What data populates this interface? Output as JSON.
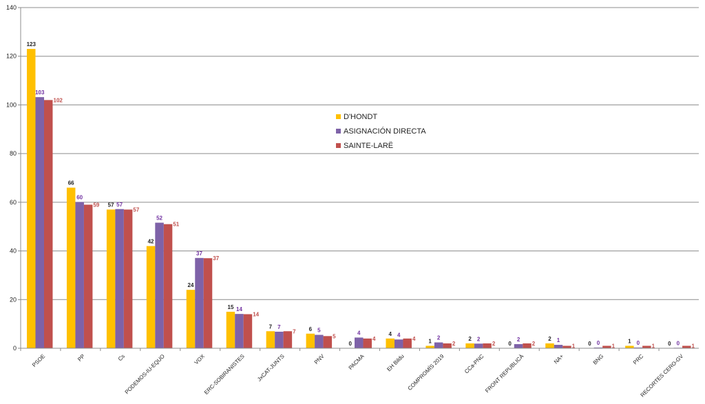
{
  "chart_data": {
    "type": "bar",
    "title": "",
    "xlabel": "",
    "ylabel": "",
    "ylim": [
      0,
      140
    ],
    "yticks": [
      0,
      20,
      40,
      60,
      80,
      100,
      120,
      140
    ],
    "grid": true,
    "legend_position": "center-right",
    "categories": [
      "PSOE",
      "PP",
      "Cs",
      "PODEMOS-IU-EQUO",
      "VOX",
      "ERC-SOBIRANISTES",
      "JxCAT-JUNTS",
      "PNV",
      "PACMA",
      "EH Bildu",
      "COMPROMÍS 2019",
      "CCa-PNC",
      "FRONT REPUBLICÀ",
      "NA+",
      "BNG",
      "PRC",
      "RECORTES CERO-GV"
    ],
    "series": [
      {
        "name": "D'HONDT",
        "color": "#FFC000",
        "label_color": "#222222",
        "values": [
          123,
          66,
          57,
          42,
          24,
          15,
          7,
          6,
          0,
          4,
          1,
          2,
          0,
          2,
          0,
          1,
          0
        ],
        "labels": [
          "123",
          "66",
          "57",
          "42",
          "24",
          "15",
          "7",
          "6",
          "0",
          "4",
          "1",
          "2",
          "0",
          "2",
          "0",
          "1",
          "0"
        ]
      },
      {
        "name": "ASIGNACIÓN DIRECTA",
        "color": "#7E62A8",
        "label_color": "#7030A0",
        "values": [
          103.2,
          60.1,
          57.2,
          51.6,
          37.1,
          14.1,
          6.8,
          5.5,
          4.4,
          3.6,
          2.4,
          1.9,
          1.7,
          1.4,
          0.3,
          0.3,
          0.2
        ],
        "labels": [
          "103",
          "60",
          "57",
          "52",
          "37",
          "14",
          "7",
          "5",
          "4",
          "4",
          "2",
          "2",
          "2",
          "1",
          "0",
          "0",
          "0"
        ]
      },
      {
        "name": "SAINTE-LARË",
        "color": "#C0504D",
        "label_color": "#C0504D",
        "values": [
          102,
          59,
          57,
          51,
          37,
          14,
          7,
          5,
          4,
          4,
          2,
          2,
          2,
          1,
          1,
          1,
          1
        ],
        "labels": [
          "102",
          "59",
          "57",
          "51",
          "37",
          "14",
          "7",
          "5",
          "4",
          "4",
          "2",
          "2",
          "2",
          "1",
          "1",
          "1",
          "1"
        ]
      }
    ]
  }
}
